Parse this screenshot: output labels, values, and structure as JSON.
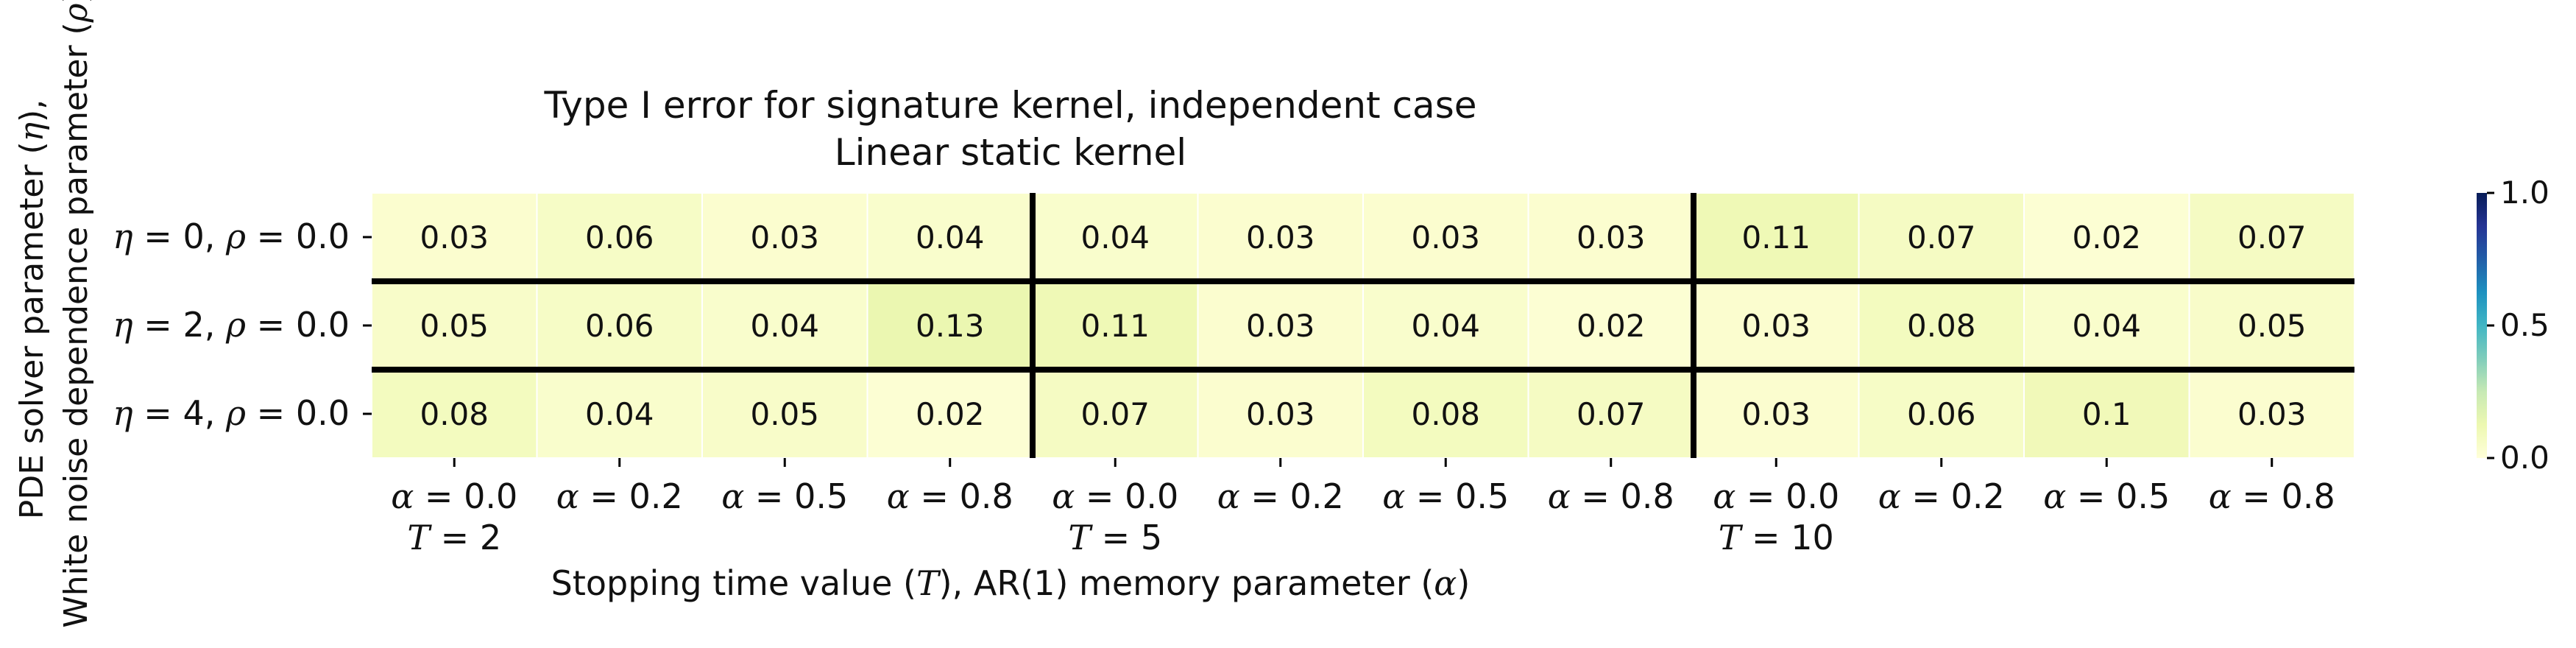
{
  "chart_data": {
    "type": "heatmap",
    "title": "Type I error for signature kernel, independent case",
    "subtitle": "Linear static kernel",
    "xlabel_parts": [
      "Stopping time value (",
      "T",
      "), AR(1) memory parameter (",
      "α",
      ")"
    ],
    "ylabel_lines": [
      [
        "PDE solver parameter (",
        "η",
        "),"
      ],
      [
        "White noise dependence parameter (",
        "ρ",
        ")"
      ]
    ],
    "row_labels": [
      [
        [
          "η",
          "math"
        ],
        [
          " = 0, ",
          "up"
        ],
        [
          "ρ",
          "math"
        ],
        [
          " = 0.0",
          "up"
        ]
      ],
      [
        [
          "η",
          "math"
        ],
        [
          " = 2, ",
          "up"
        ],
        [
          "ρ",
          "math"
        ],
        [
          " = 0.0",
          "up"
        ]
      ],
      [
        [
          "η",
          "math"
        ],
        [
          " = 4, ",
          "up"
        ],
        [
          "ρ",
          "math"
        ],
        [
          " = 0.0",
          "up"
        ]
      ]
    ],
    "col_labels": [
      "α = 0.0",
      "α = 0.2",
      "α = 0.5",
      "α = 0.8",
      "α = 0.0",
      "α = 0.2",
      "α = 0.5",
      "α = 0.8",
      "α = 0.0",
      "α = 0.2",
      "α = 0.5",
      "α = 0.8"
    ],
    "group_labels": [
      {
        "col": 0,
        "text": "T = 2"
      },
      {
        "col": 4,
        "text": "T = 5"
      },
      {
        "col": 8,
        "text": "T = 10"
      }
    ],
    "values": [
      [
        0.03,
        0.06,
        0.03,
        0.04,
        0.04,
        0.03,
        0.03,
        0.03,
        0.11,
        0.07,
        0.02,
        0.07
      ],
      [
        0.05,
        0.06,
        0.04,
        0.13,
        0.11,
        0.03,
        0.04,
        0.02,
        0.03,
        0.08,
        0.04,
        0.05
      ],
      [
        0.08,
        0.04,
        0.05,
        0.02,
        0.07,
        0.03,
        0.08,
        0.07,
        0.03,
        0.06,
        0.1,
        0.03
      ]
    ],
    "cell_text": [
      [
        "0.03",
        "0.06",
        "0.03",
        "0.04",
        "0.04",
        "0.03",
        "0.03",
        "0.03",
        "0.11",
        "0.07",
        "0.02",
        "0.07"
      ],
      [
        "0.05",
        "0.06",
        "0.04",
        "0.13",
        "0.11",
        "0.03",
        "0.04",
        "0.02",
        "0.03",
        "0.08",
        "0.04",
        "0.05"
      ],
      [
        "0.08",
        "0.04",
        "0.05",
        "0.02",
        "0.07",
        "0.03",
        "0.08",
        "0.07",
        "0.03",
        "0.06",
        "0.1",
        "0.03"
      ]
    ],
    "group_separators_after_col": [
      3,
      7
    ],
    "row_separators_after_row": [
      0,
      1
    ],
    "colorbar": {
      "min": 0.0,
      "max": 1.0,
      "ticks": [
        "0.0",
        "0.5",
        "1.0"
      ],
      "colormap": "YlGnBu",
      "stops": [
        "#ffffd9",
        "#edf8b1",
        "#c7e9b4",
        "#7fcdbb",
        "#41b6c4",
        "#1d91c0",
        "#225ea8",
        "#253494",
        "#081d58"
      ]
    }
  }
}
